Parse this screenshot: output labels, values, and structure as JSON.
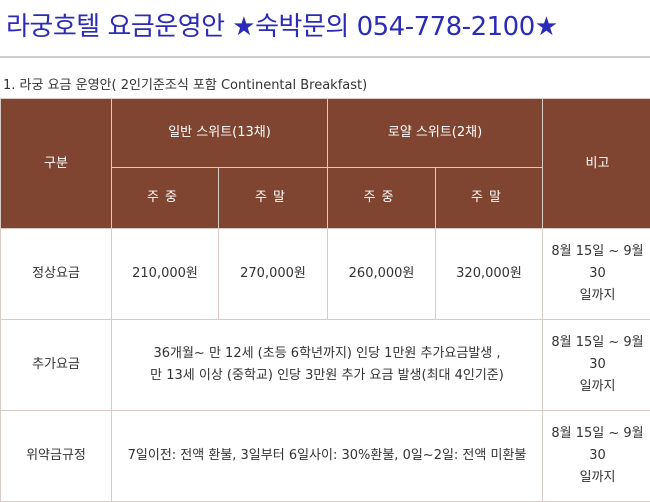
{
  "page": {
    "title": "라궁호텔 요금운영안 ★숙박문의 054-778-2100★",
    "subtitle": "1. 라궁 요금 운영안( 2인기준조식 포함 Continental Breakfast)"
  },
  "table": {
    "headers": {
      "category": "구분",
      "general_suite": "일반 스위트(13채)",
      "royal_suite": "로얄 스위트(2채)",
      "note": "비고",
      "weekday": "주중",
      "weekend": "주말"
    },
    "rows": [
      {
        "label": "정상요금",
        "general_weekday": "210,000원",
        "general_weekend": "270,000원",
        "royal_weekday": "260,000원",
        "royal_weekend": "320,000원",
        "note_line1": "8월 15일 ~ 9월 30",
        "note_line2": "일까지"
      },
      {
        "label": "추가요금",
        "text_line1": "36개월~ 만 12세 (초등 6학년까지) 인당 1만원 추가요금발생 ,",
        "text_line2": "만 13세 이상 (중학교) 인당 3만원 추가 요금 발생(최대 4인기준)",
        "note_line1": "8월 15일 ~ 9월 30",
        "note_line2": "일까지"
      },
      {
        "label": "위약금규정",
        "text_line1": "7일이전: 전액 환불, 3일부터 6일사이: 30%환불, 0일~2일: 전액 미환불",
        "note_line1": "8월 15일 ~ 9월 30",
        "note_line2": "일까지"
      }
    ]
  },
  "colors": {
    "title": "#2b2bb8",
    "header_bg": "#7f4531",
    "header_text": "#ffffff",
    "border": "#d7cbc3"
  }
}
